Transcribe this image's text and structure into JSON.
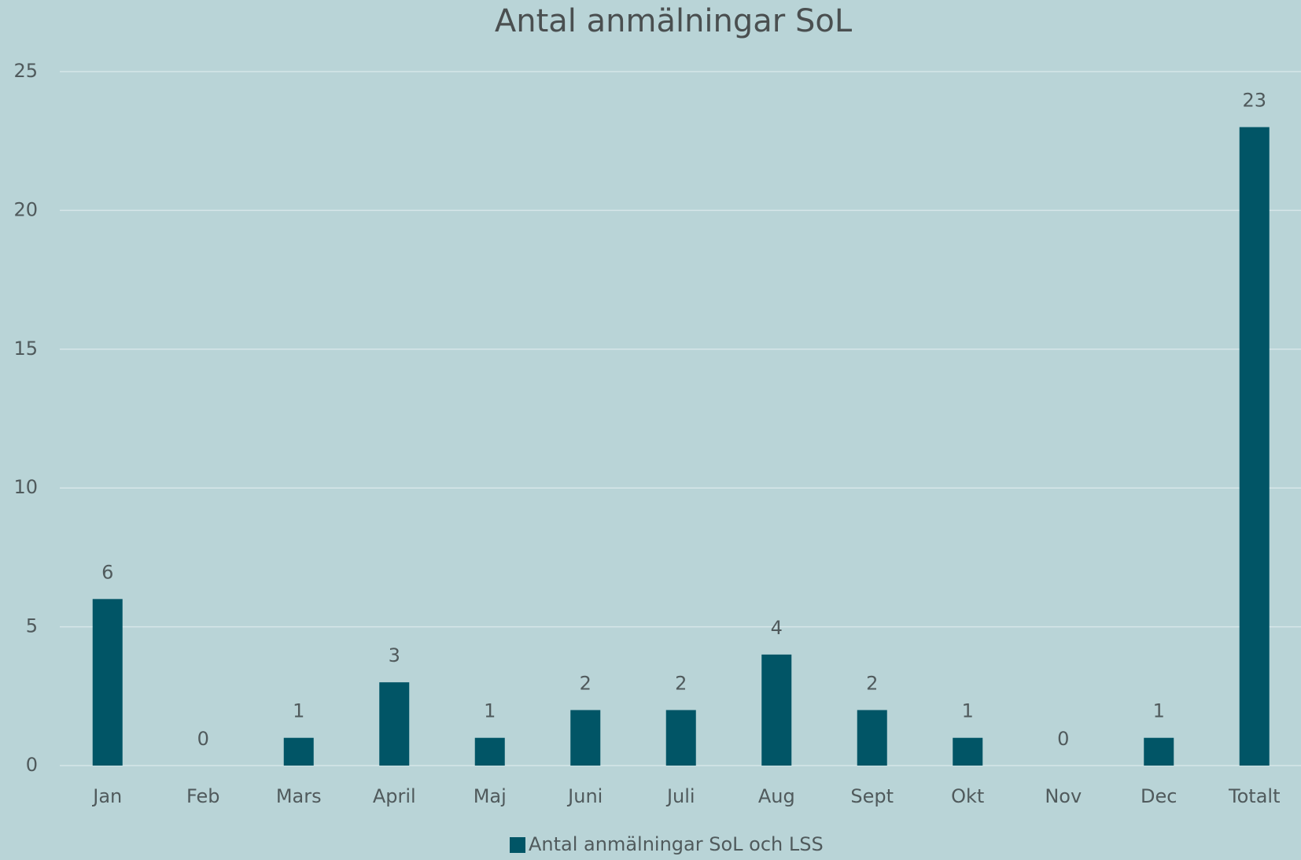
{
  "chart_data": {
    "type": "bar",
    "title": "Antal anmälningar SoL",
    "categories": [
      "Jan",
      "Feb",
      "Mars",
      "April",
      "Maj",
      "Juni",
      "Juli",
      "Aug",
      "Sept",
      "Okt",
      "Nov",
      "Dec",
      "Totalt"
    ],
    "series": [
      {
        "name": "Antal anmälningar SoL och LSS",
        "color": "#015566",
        "values": [
          6,
          0,
          1,
          3,
          1,
          2,
          2,
          4,
          2,
          1,
          0,
          1,
          23
        ]
      }
    ],
    "ylim": [
      0,
      25
    ],
    "yticks": [
      0,
      5,
      10,
      15,
      20,
      25
    ],
    "grid": true,
    "legend": "bottom",
    "data_labels": true
  }
}
